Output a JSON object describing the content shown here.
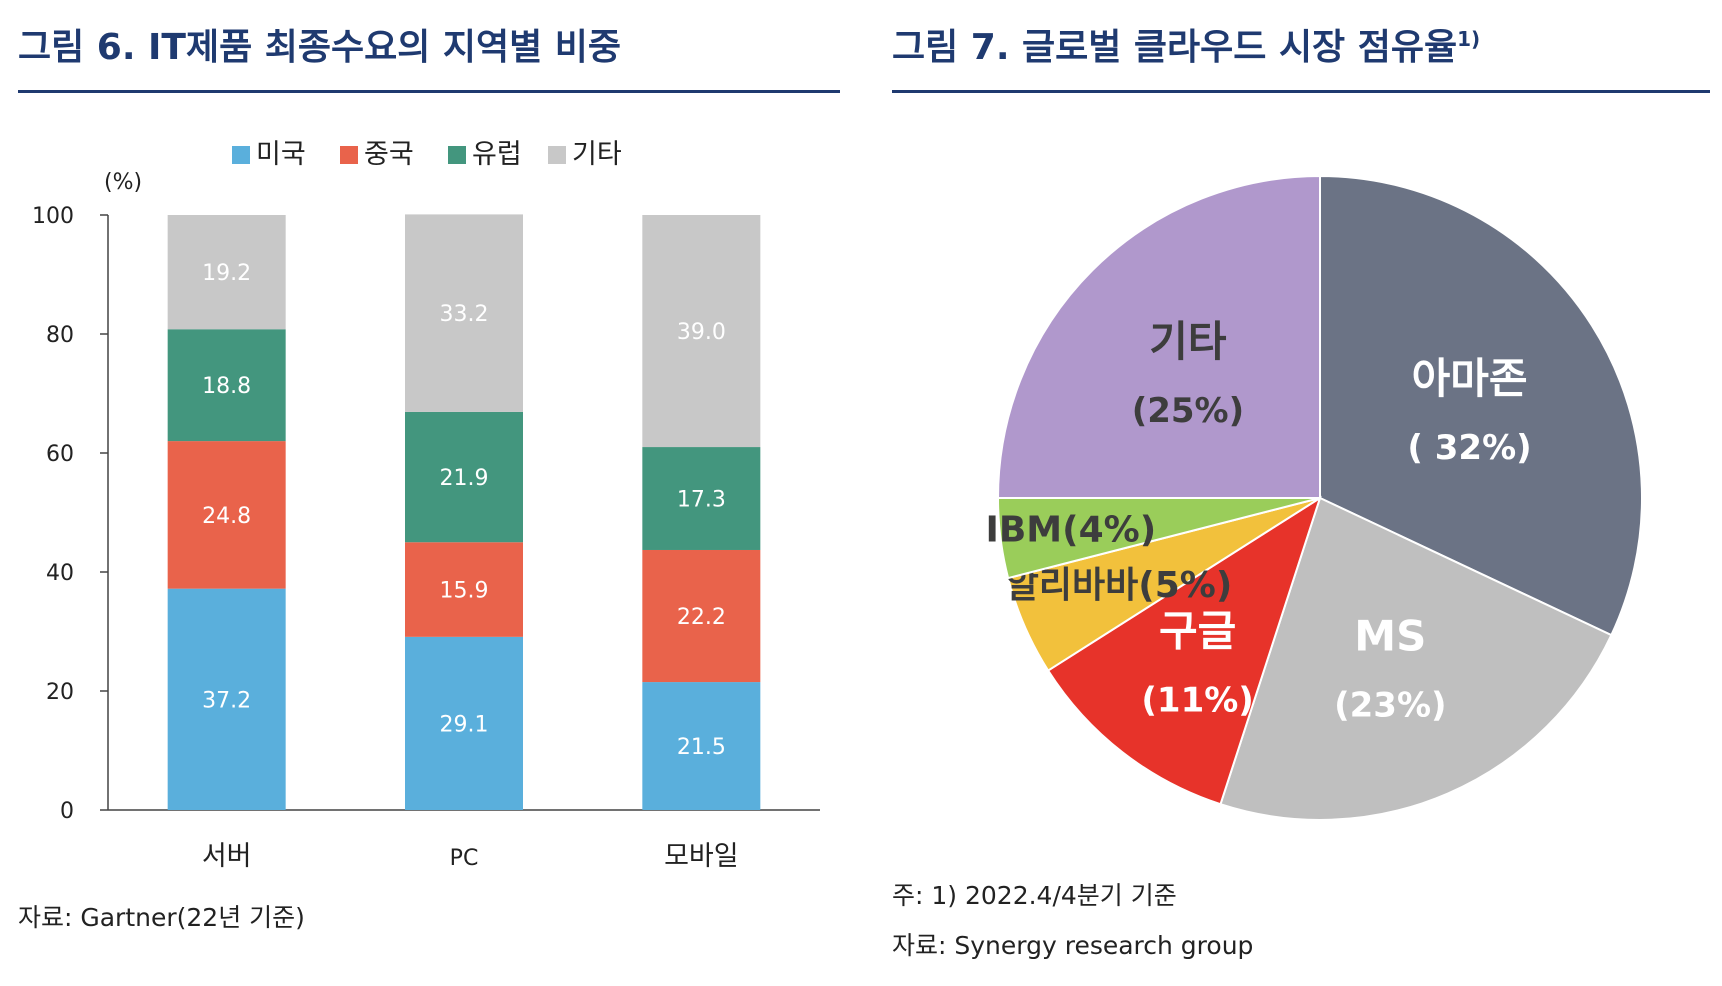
{
  "left": {
    "title": "그림 6. IT제품 최종수요의 지역별 비중",
    "source": "자료: Gartner(22년 기준)"
  },
  "right": {
    "title": "그림 7. 글로벌 클라우드 시장 점유율",
    "title_sup": "1)",
    "note1": "주: 1) 2022.4/4분기 기준",
    "note2": "자료: Synergy research group"
  },
  "chart_data": [
    {
      "type": "bar",
      "stacked": true,
      "categories": [
        "서버",
        "PC",
        "모바일"
      ],
      "series": [
        {
          "name": "미국",
          "color": "#5aafdc",
          "values": [
            37.2,
            29.1,
            21.5
          ]
        },
        {
          "name": "중국",
          "color": "#e9634b",
          "values": [
            24.8,
            15.9,
            22.2
          ]
        },
        {
          "name": "유럽",
          "color": "#43967e",
          "values": [
            18.8,
            21.9,
            17.3
          ]
        },
        {
          "name": "기타",
          "color": "#c8c8c8",
          "values": [
            19.2,
            33.2,
            39.0
          ]
        }
      ],
      "ylabel": "(%)",
      "ylim": [
        0,
        100
      ],
      "yticks": [
        0,
        20,
        40,
        60,
        80,
        100
      ],
      "legend": "top",
      "grid": false
    },
    {
      "type": "pie",
      "slices": [
        {
          "name": "아마존",
          "pct_label": "( 32%)",
          "value": 32,
          "color": "#6b7385",
          "text_color": "#ffffff"
        },
        {
          "name": "MS",
          "pct_label": "(23%)",
          "value": 23,
          "color": "#bfbfbf",
          "text_color": "#ffffff"
        },
        {
          "name": "구글",
          "pct_label": "(11%)",
          "value": 11,
          "color": "#e7332a",
          "text_color": "#ffffff"
        },
        {
          "name": "알리바바",
          "pct_label": "(5%)",
          "value": 5,
          "color": "#f2c13c",
          "text_color": "#3d3d3d"
        },
        {
          "name": "IBM",
          "pct_label": "(4%)",
          "value": 4,
          "color": "#9acd5a",
          "text_color": "#3d3d3d"
        },
        {
          "name": "기타",
          "pct_label": "(25%)",
          "value": 25,
          "color": "#b098cc",
          "text_color": "#3d3d3d"
        }
      ],
      "start_angle_deg": 0,
      "direction": "clockwise"
    }
  ]
}
